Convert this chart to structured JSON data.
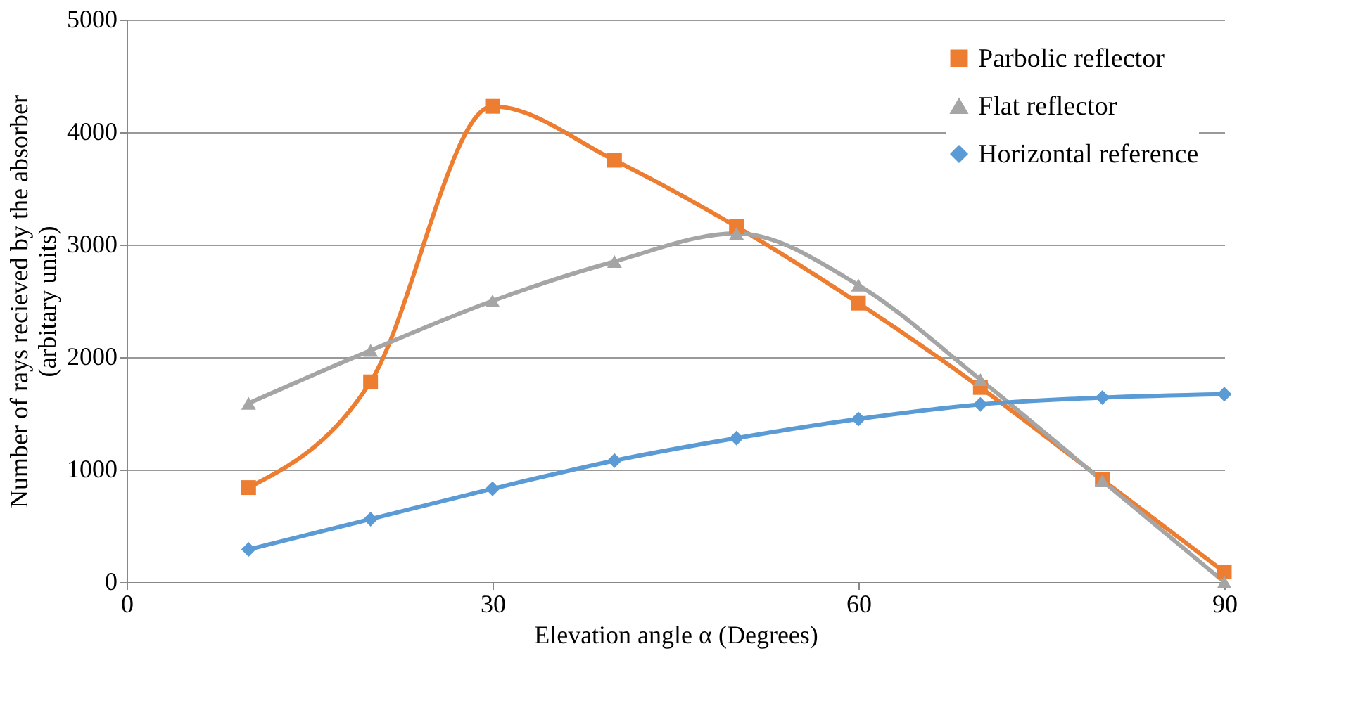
{
  "chart_data": {
    "type": "line",
    "xlabel": "Elevation angle α (Degrees)",
    "ylabel": "Number of rays recieved by the absorber (arbitary units)",
    "x": [
      10,
      20,
      30,
      40,
      50,
      60,
      70,
      80,
      90
    ],
    "series": [
      {
        "name": "Parbolic reflector",
        "color": "#ed7d31",
        "marker": "square",
        "values": [
          840,
          1780,
          4230,
          3750,
          3160,
          2480,
          1730,
          910,
          90
        ]
      },
      {
        "name": "Flat reflector",
        "color": "#a5a5a5",
        "marker": "triangle",
        "values": [
          1590,
          2060,
          2500,
          2850,
          3100,
          2640,
          1800,
          900,
          0
        ]
      },
      {
        "name": "Horizontal reference",
        "color": "#5b9bd5",
        "marker": "diamond",
        "values": [
          290,
          560,
          830,
          1080,
          1280,
          1450,
          1580,
          1640,
          1670
        ]
      }
    ],
    "xlim": [
      0,
      90
    ],
    "xticks": [
      0,
      30,
      60,
      90
    ],
    "ylim": [
      0,
      5000
    ],
    "yticks": [
      0,
      1000,
      2000,
      3000,
      4000,
      5000
    ],
    "grid": "y",
    "legend": "top right",
    "line_style": "solid"
  }
}
